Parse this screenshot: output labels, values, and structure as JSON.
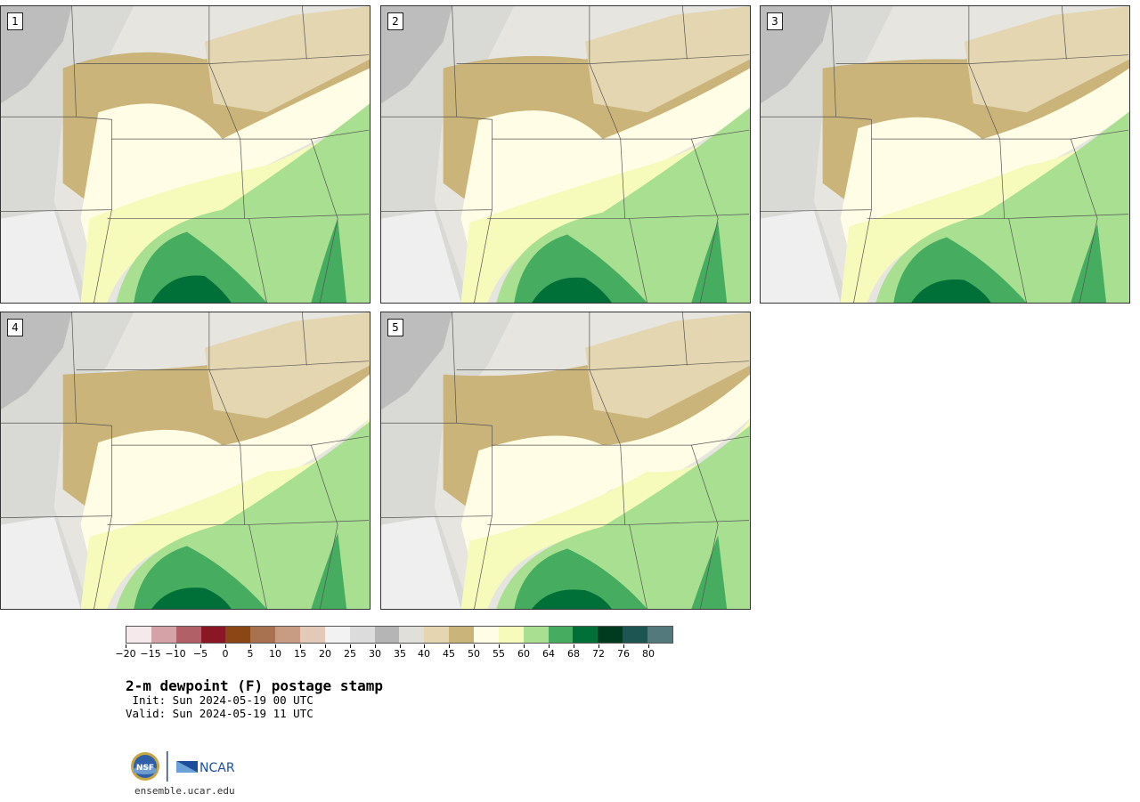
{
  "panels": [
    {
      "label": "1",
      "tint": "#ffffff"
    },
    {
      "label": "2",
      "tint": "#fbfbe8"
    },
    {
      "label": "3",
      "tint": "#f6fbe8"
    },
    {
      "label": "4",
      "tint": "#f3efe0"
    },
    {
      "label": "5",
      "tint": "#efe9d8"
    }
  ],
  "colorbar": {
    "colors": [
      "#f6e9ec",
      "#d5a2a8",
      "#b06066",
      "#8a1626",
      "#8a4614",
      "#a8714f",
      "#c89c82",
      "#e2c9b8",
      "#f2f2f2",
      "#dcdcdc",
      "#b5b5b5",
      "#e0e0d8",
      "#e4d6b0",
      "#cbb47a",
      "#fffde6",
      "#f6fbbb",
      "#a9df91",
      "#45ac60",
      "#007038",
      "#003b20",
      "#1d5553",
      "#53797c"
    ],
    "ticks": [
      "−20",
      "−15",
      "−10",
      "−5",
      "0",
      "5",
      "10",
      "15",
      "20",
      "25",
      "30",
      "35",
      "40",
      "45",
      "50",
      "55",
      "60",
      "64",
      "68",
      "72",
      "76",
      "80"
    ]
  },
  "title": "2-m dewpoint (F) postage stamp",
  "init": " Init: Sun 2024-05-19 00 UTC",
  "valid": "Valid: Sun 2024-05-19 11 UTC",
  "logos": {
    "nsf": "NSF",
    "ncar": "NCAR"
  },
  "site": "ensemble.ucar.edu"
}
